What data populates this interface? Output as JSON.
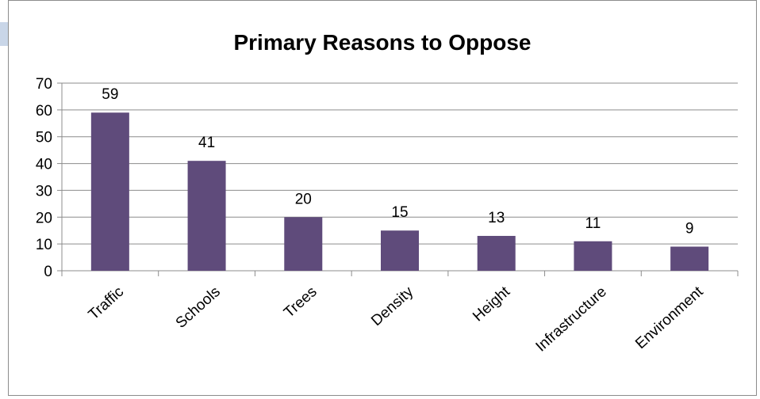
{
  "chart_data": {
    "type": "bar",
    "title": "Primary Reasons to Oppose",
    "categories": [
      "Traffic",
      "Schools",
      "Trees",
      "Density",
      "Height",
      "Infrastructure",
      "Environment"
    ],
    "values": [
      59,
      41,
      20,
      15,
      13,
      11,
      9
    ],
    "ylim": [
      0,
      70
    ],
    "yticks": [
      0,
      10,
      20,
      30,
      40,
      50,
      60,
      70
    ],
    "grid": true,
    "legend": "none",
    "data_labels": true,
    "bar_color": "#5f4b7b",
    "grid_color": "#8c8c8c"
  }
}
